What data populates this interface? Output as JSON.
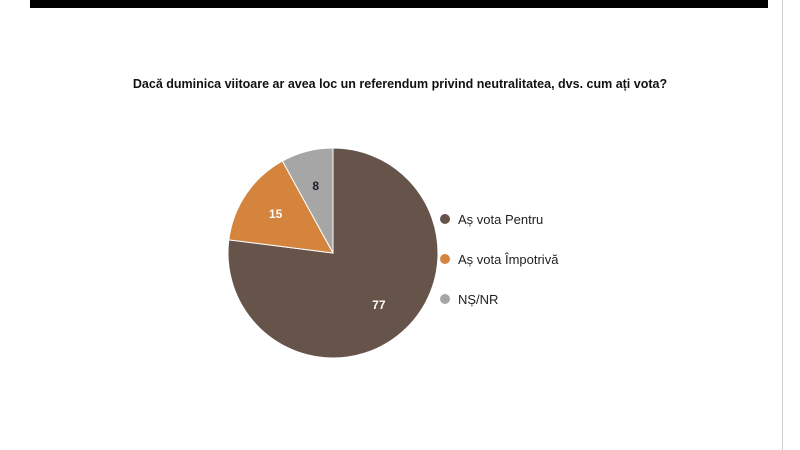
{
  "chart_data": {
    "type": "pie",
    "title": "Dacă duminica viitoare ar avea loc un referendum privind neutralitatea, dvs. cum ați vota?",
    "categories": [
      "Aș vota Pentru",
      "Aș vota Împotrivă",
      "NȘ/NR"
    ],
    "values": [
      77,
      15,
      8
    ],
    "data_labels": [
      "77",
      "15",
      "8"
    ],
    "colors": [
      "#66534a",
      "#d5843d",
      "#a6a6a6"
    ],
    "label_colors": [
      "#ffffff",
      "#ffffff",
      "#1a1a2e"
    ],
    "legend_placement": "right"
  }
}
